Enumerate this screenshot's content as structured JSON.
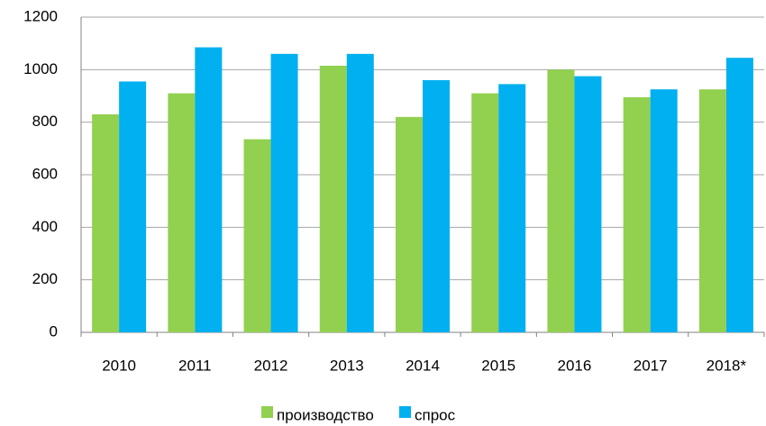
{
  "chart_data": {
    "type": "bar",
    "categories": [
      "2010",
      "2011",
      "2012",
      "2013",
      "2014",
      "2015",
      "2016",
      "2017",
      "2018*"
    ],
    "series": [
      {
        "name": "производство",
        "color": "#92d050",
        "values": [
          830,
          910,
          735,
          1015,
          820,
          910,
          1000,
          895,
          925
        ]
      },
      {
        "name": "спрос",
        "color": "#00b0f0",
        "values": [
          955,
          1085,
          1060,
          1060,
          960,
          945,
          975,
          925,
          1045
        ]
      }
    ],
    "ylim": [
      0,
      1200
    ],
    "yticks": [
      0,
      200,
      400,
      600,
      800,
      1000,
      1200
    ],
    "grid": true,
    "legend": "bottom"
  }
}
